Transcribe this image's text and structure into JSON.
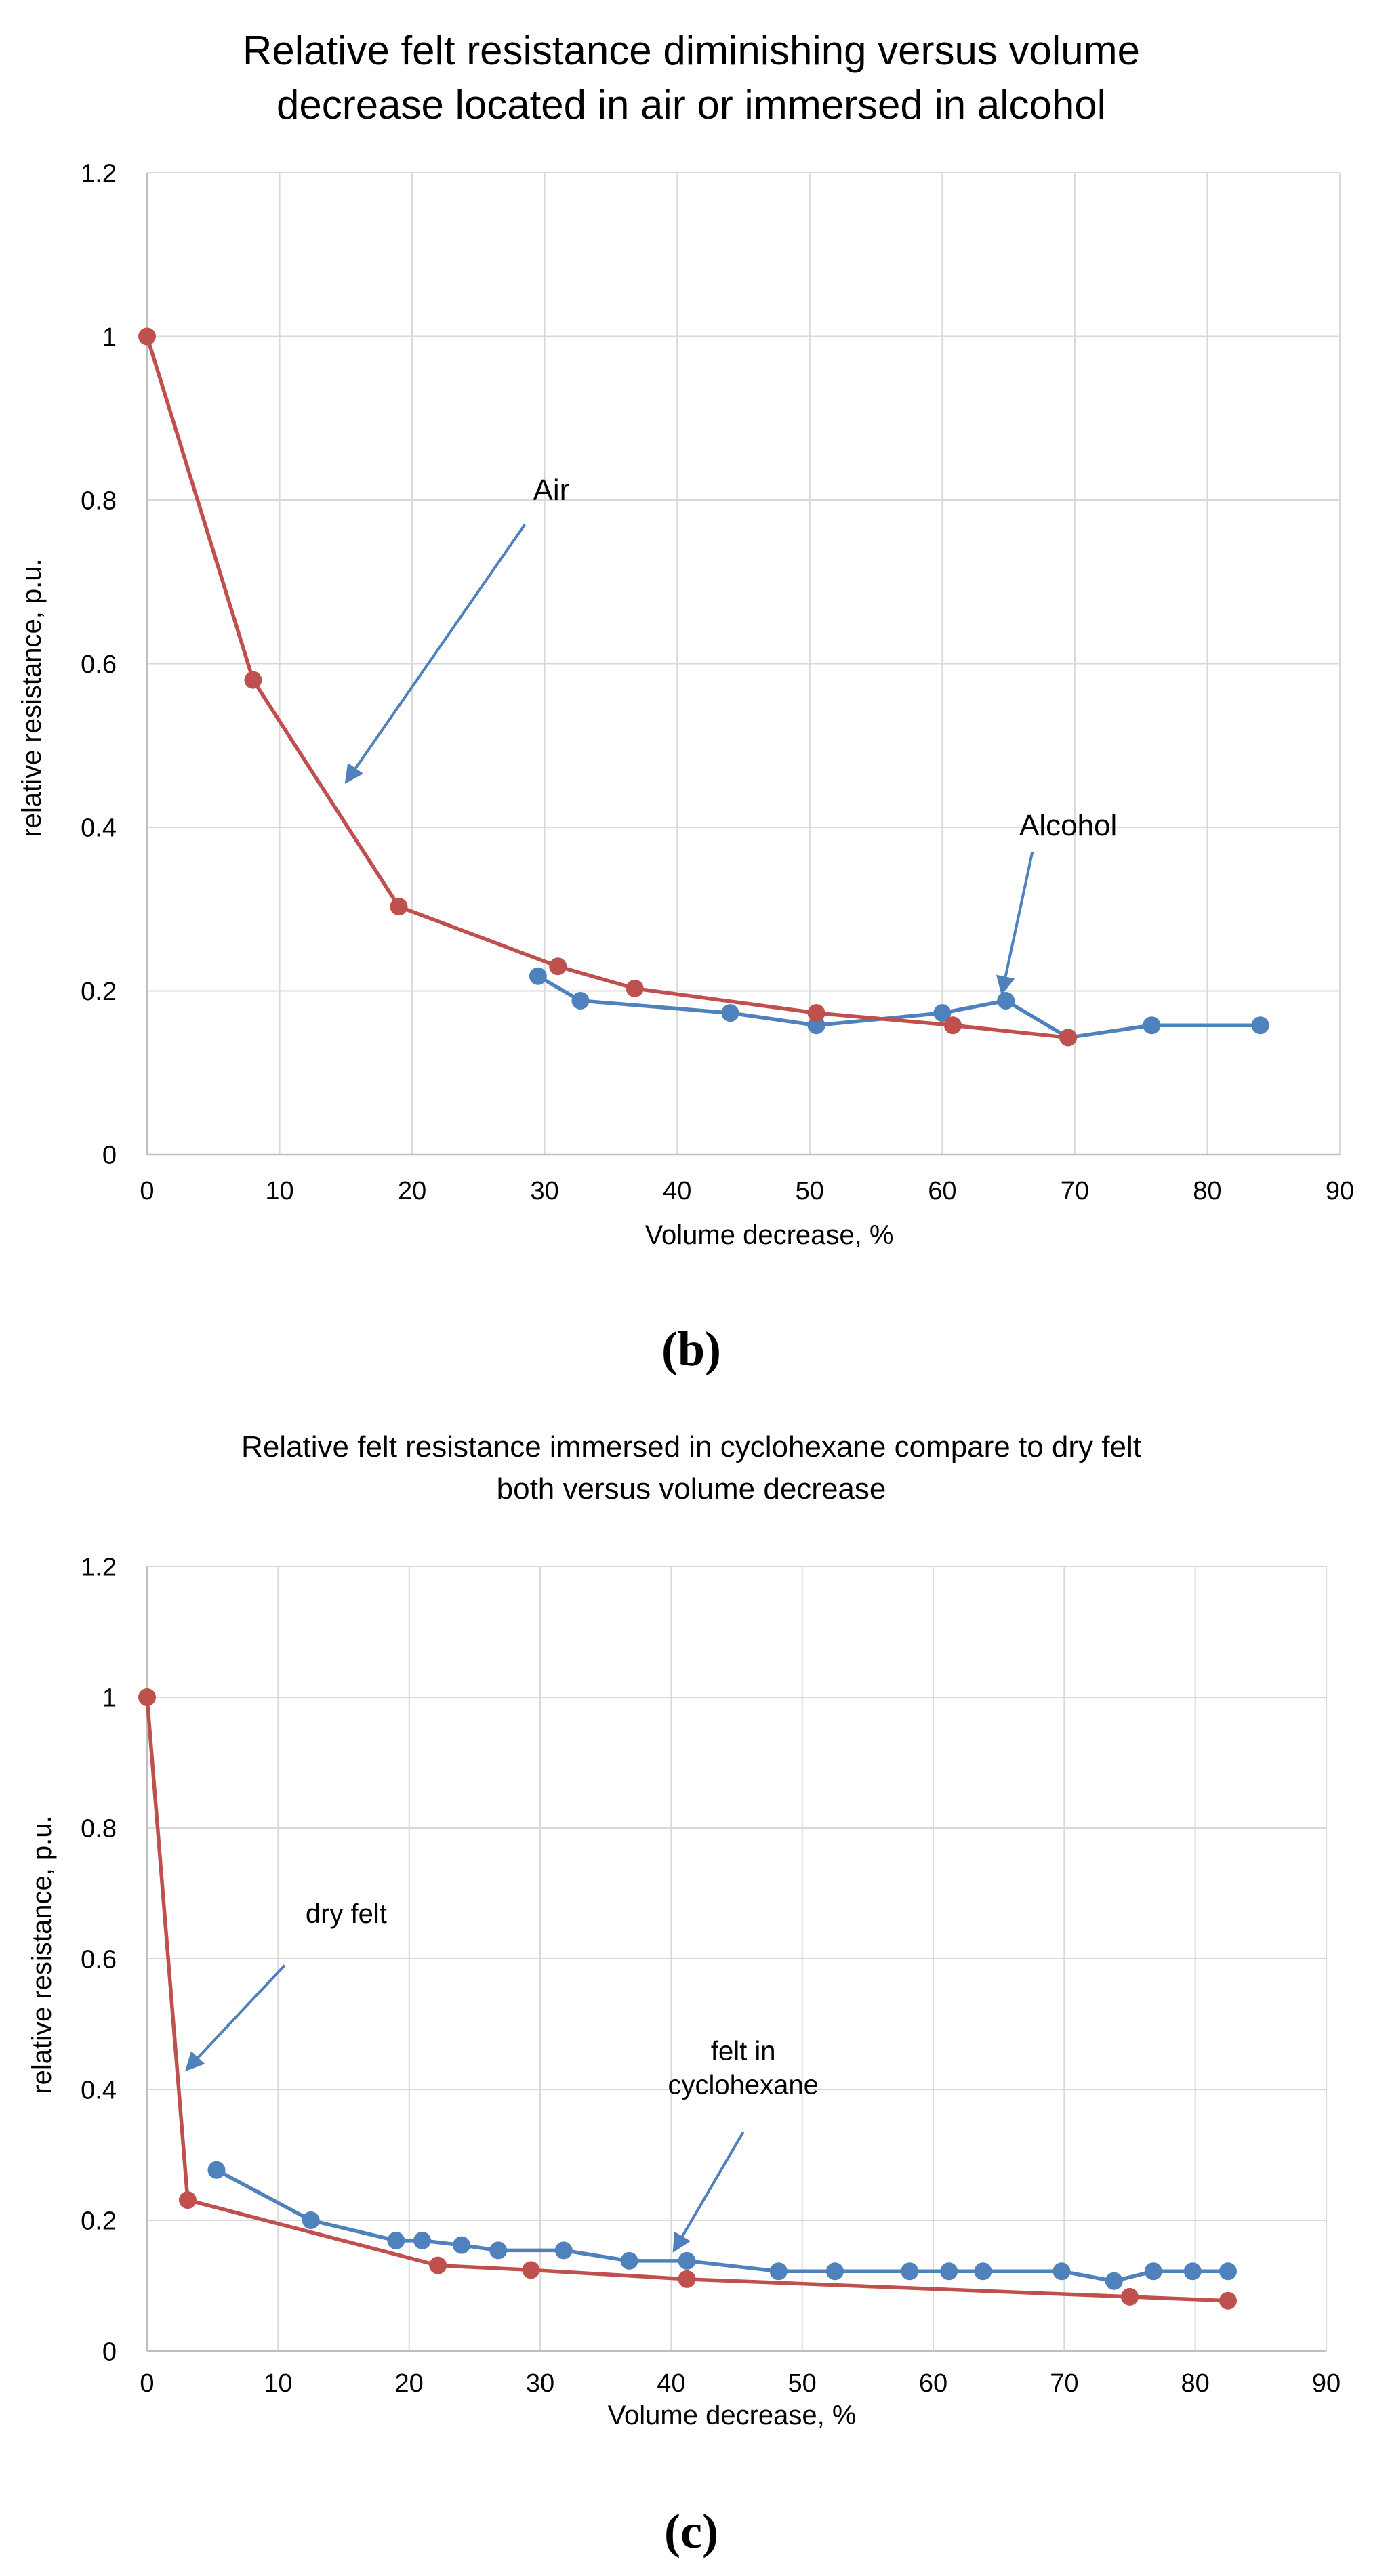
{
  "colors": {
    "air": "#c0504d",
    "alcohol": "#4f81bd",
    "grid": "#d9d9d9",
    "annotation": "#4f81bd",
    "text": "#000000"
  },
  "panel_labels": [
    "(b)",
    "(c)"
  ],
  "chart_data": [
    {
      "type": "line",
      "panel": "(b)",
      "title_lines": [
        "Relative felt resistance diminishing versus volume",
        "decrease located in air or immersed in alcohol"
      ],
      "xlabel": "Volume decrease, %",
      "ylabel": "relative resistance, p.u.",
      "xlim": [
        0,
        90
      ],
      "ylim": [
        0,
        1.2
      ],
      "xticks": [
        0,
        10,
        20,
        30,
        40,
        50,
        60,
        70,
        80,
        90
      ],
      "yticks": [
        0,
        0.2,
        0.4,
        0.6,
        0.8,
        1,
        1.2
      ],
      "xtick_labels": [
        "0",
        "10",
        "20",
        "30",
        "40",
        "50",
        "60",
        "70",
        "80",
        "90"
      ],
      "ytick_labels": [
        "0",
        "0.2",
        "0.4",
        "0.6",
        "0.8",
        "1",
        "1.2"
      ],
      "grid": true,
      "series": [
        {
          "name": "Alcohol",
          "color": "#4f81bd",
          "x": [
            29.5,
            32.7,
            44,
            50.5,
            60,
            64.8,
            69.5,
            75.8,
            84
          ],
          "y": [
            0.218,
            0.188,
            0.173,
            0.158,
            0.173,
            0.188,
            0.143,
            0.158,
            0.158
          ]
        },
        {
          "name": "Air",
          "color": "#c0504d",
          "x": [
            0,
            8,
            19,
            31,
            36.8,
            50.5,
            60.8,
            69.5
          ],
          "y": [
            1.0,
            0.58,
            0.303,
            0.23,
            0.203,
            0.173,
            0.158,
            0.143
          ]
        }
      ],
      "annotations": [
        {
          "name": "annotation-air",
          "text": "Air",
          "text_at": [
            30.5,
            0.8
          ],
          "arrow_from": [
            28.5,
            0.77
          ],
          "arrow_to": [
            15.0,
            0.455
          ]
        },
        {
          "name": "annotation-alcohol",
          "text": "Alcohol",
          "text_at": [
            69.5,
            0.39
          ],
          "arrow_from": [
            66.8,
            0.37
          ],
          "arrow_to": [
            64.5,
            0.197
          ]
        }
      ]
    },
    {
      "type": "line",
      "panel": "(c)",
      "title_lines": [
        "Relative felt resistance immersed in cyclohexane compare to dry felt",
        "both versus volume decrease"
      ],
      "xlabel": "Volume decrease, %",
      "ylabel": "relative resistance, p.u.",
      "xlim": [
        0,
        90
      ],
      "ylim": [
        0,
        1.2
      ],
      "xticks": [
        0,
        10,
        20,
        30,
        40,
        50,
        60,
        70,
        80,
        90
      ],
      "yticks": [
        0,
        0.2,
        0.4,
        0.6,
        0.8,
        1,
        1.2
      ],
      "xtick_labels": [
        "0",
        "10",
        "20",
        "30",
        "40",
        "50",
        "60",
        "70",
        "80",
        "90"
      ],
      "ytick_labels": [
        "0",
        "0.2",
        "0.4",
        "0.6",
        "0.8",
        "1",
        "1.2"
      ],
      "grid": true,
      "series": [
        {
          "name": "felt in cyclohexane",
          "color": "#4f81bd",
          "x": [
            5.3,
            12.5,
            19,
            21,
            24,
            26.8,
            31.8,
            36.8,
            41.2,
            48.2,
            52.5,
            58.2,
            61.2,
            63.8,
            69.8,
            73.8,
            76.8,
            79.8,
            82.5
          ],
          "y": [
            0.277,
            0.2,
            0.169,
            0.169,
            0.162,
            0.154,
            0.154,
            0.138,
            0.138,
            0.122,
            0.122,
            0.122,
            0.122,
            0.122,
            0.122,
            0.107,
            0.122,
            0.122,
            0.122
          ]
        },
        {
          "name": "dry felt",
          "color": "#c0504d",
          "x": [
            0,
            3.1,
            22.2,
            29.3,
            41.2,
            75,
            82.5
          ],
          "y": [
            1.0,
            0.231,
            0.131,
            0.124,
            0.11,
            0.083,
            0.077
          ]
        }
      ],
      "annotations": [
        {
          "name": "annotation-dry-felt",
          "text": "dry felt",
          "text_at": [
            15.2,
            0.655
          ],
          "arrow_from": [
            10.5,
            0.59
          ],
          "arrow_to": [
            3.0,
            0.43
          ]
        },
        {
          "name": "annotation-felt-in-cyclohexane",
          "text_lines": [
            "felt in",
            "cyclohexane"
          ],
          "text_at": [
            45.5,
            0.445
          ],
          "arrow_from": [
            45.5,
            0.335
          ],
          "arrow_to": [
            40.2,
            0.153
          ]
        }
      ]
    }
  ]
}
